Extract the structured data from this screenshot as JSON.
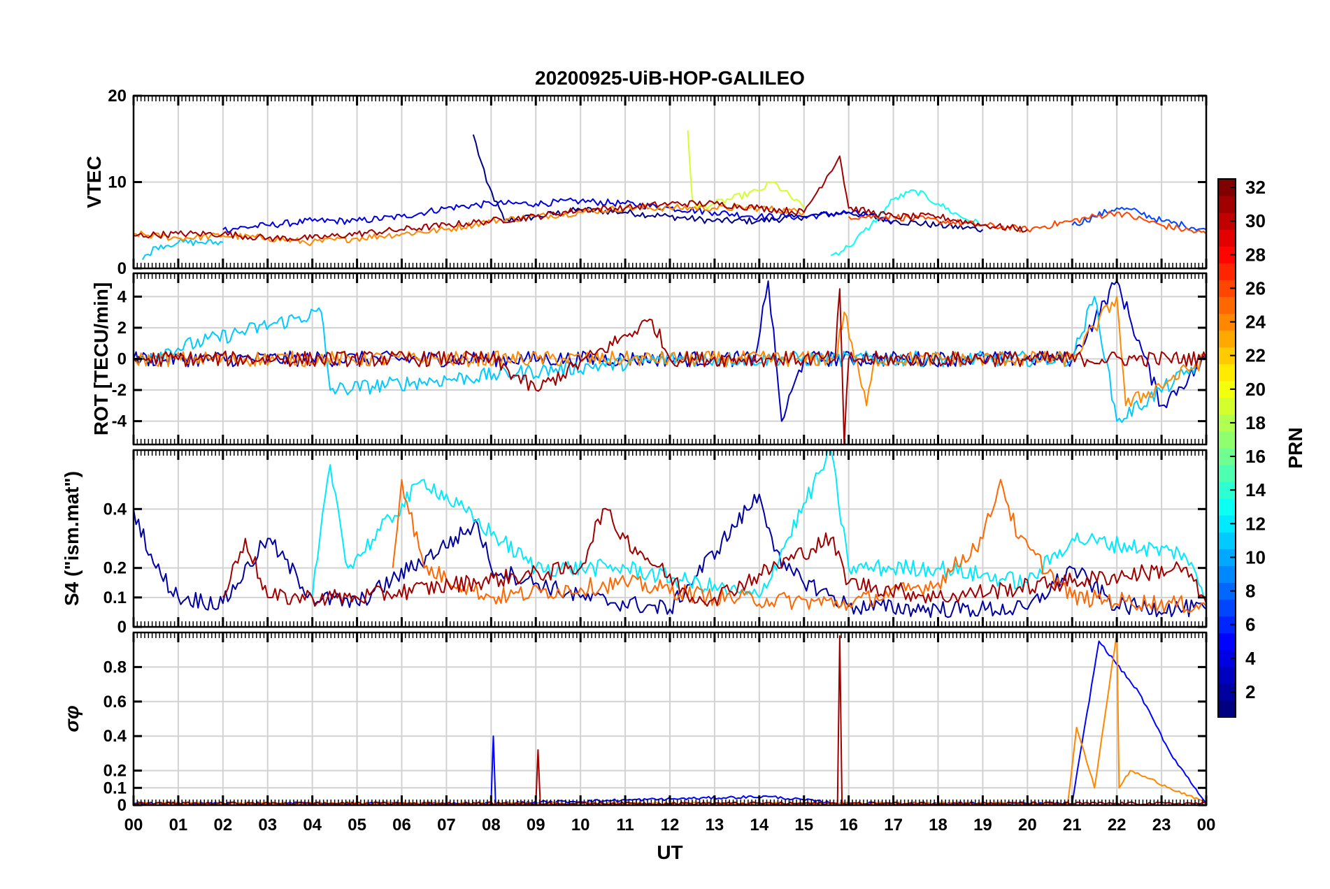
{
  "chart_data": {
    "type": "line",
    "title": "20200925-UiB-HOP-GALILEO",
    "xlabel": "UT",
    "x_ticks": [
      "00",
      "01",
      "02",
      "03",
      "04",
      "05",
      "06",
      "07",
      "08",
      "09",
      "10",
      "11",
      "12",
      "13",
      "14",
      "15",
      "16",
      "17",
      "18",
      "19",
      "20",
      "21",
      "22",
      "23",
      "00"
    ],
    "x_range_hours": [
      0,
      24
    ],
    "colormap": "jet",
    "colorbar": {
      "label": "PRN",
      "range": [
        1,
        32
      ],
      "ticks": [
        2,
        4,
        6,
        8,
        10,
        12,
        14,
        16,
        18,
        20,
        22,
        24,
        26,
        28,
        30,
        32
      ],
      "tick_labels": [
        "2",
        "4",
        "6",
        "8",
        "10",
        "12",
        "14",
        "16",
        "18",
        "20",
        "22",
        "24",
        "26",
        "28",
        "30",
        "32"
      ]
    },
    "panels": [
      {
        "id": "vtec",
        "ylabel": "VTEC",
        "ylim": [
          0,
          20
        ],
        "yticks": [
          0,
          10,
          20
        ],
        "ytick_labels": [
          "0",
          "10",
          "20"
        ],
        "series": [
          {
            "prn": 1,
            "hours": [
              7.6,
              7.9,
              8.3,
              9,
              10,
              11,
              12,
              13,
              14,
              15,
              16,
              17,
              18,
              19
            ],
            "values": [
              15.5,
              10,
              5.5,
              6,
              6.8,
              6.5,
              6,
              5.5,
              5.5,
              6,
              6.5,
              5.5,
              5,
              4.5
            ]
          },
          {
            "prn": 4,
            "hours": [
              2,
              3,
              4,
              5,
              6,
              7,
              8,
              9,
              10,
              11,
              12,
              13,
              14,
              15,
              16,
              17
            ],
            "values": [
              4.5,
              5,
              5.5,
              5.5,
              6,
              7,
              7.5,
              7.5,
              7.8,
              7.5,
              7,
              6.5,
              6,
              6,
              6.5,
              5.5
            ]
          },
          {
            "prn": 7,
            "hours": [
              21,
              21.5,
              22,
              22.5,
              23,
              23.5,
              24
            ],
            "values": [
              5,
              6,
              7,
              6.5,
              5.5,
              5,
              4.5
            ]
          },
          {
            "prn": 11,
            "hours": [
              0.2,
              0.5,
              1,
              1.5,
              2
            ],
            "values": [
              1,
              2.5,
              3,
              3,
              3
            ]
          },
          {
            "prn": 13,
            "hours": [
              15.6,
              16,
              16.5,
              17,
              17.5,
              18,
              18.5,
              19
            ],
            "values": [
              1.5,
              2.5,
              5,
              8,
              9,
              7.5,
              6,
              5
            ]
          },
          {
            "prn": 19,
            "hours": [
              12.4,
              12.5,
              12.6,
              13,
              14,
              14.3,
              15
            ],
            "values": [
              16,
              8,
              7,
              7.5,
              9,
              10,
              7
            ]
          },
          {
            "prn": 24,
            "hours": [
              0,
              1,
              2,
              3,
              4,
              5,
              6,
              7,
              8,
              9,
              10,
              11,
              12,
              13,
              14,
              15
            ],
            "values": [
              4,
              3.5,
              3.8,
              3.5,
              3,
              3.5,
              4,
              4.5,
              5.5,
              6,
              6.5,
              7,
              7,
              7,
              7,
              6.5
            ]
          },
          {
            "prn": 26,
            "hours": [
              16,
              17,
              18,
              19,
              20,
              21,
              22,
              23,
              24
            ],
            "values": [
              6,
              6,
              5.5,
              5,
              4.5,
              5.5,
              6.5,
              5,
              4
            ]
          },
          {
            "prn": 31,
            "hours": [
              0,
              1,
              2,
              3,
              4,
              5,
              6,
              7,
              8,
              9,
              10,
              11,
              12,
              13,
              14,
              15,
              15.8,
              16,
              17,
              18,
              19,
              20
            ],
            "values": [
              3.8,
              4,
              4,
              3.5,
              3.5,
              4,
              4.5,
              5,
              5.5,
              6,
              6.8,
              7,
              7.5,
              7.5,
              7,
              6.5,
              13,
              7,
              6,
              6,
              5,
              4.5
            ]
          }
        ]
      },
      {
        "id": "rot",
        "ylabel": "ROT [TECU/min]",
        "ylim": [
          -5.5,
          5.5
        ],
        "yticks": [
          -4,
          -2,
          0,
          2,
          4
        ],
        "ytick_labels": [
          "-4",
          "-2",
          "0",
          "2",
          "4"
        ],
        "series": [
          {
            "prn": 3,
            "hours": [
              0,
              4,
              8,
              12,
              13.9,
              14.2,
              14.5,
              15,
              20,
              21,
              22,
              23,
              24
            ],
            "values": [
              0,
              0,
              0,
              0,
              0,
              5,
              -4,
              0,
              0,
              0,
              5,
              -3,
              0
            ]
          },
          {
            "prn": 11,
            "hours": [
              0,
              4.2,
              4.4,
              12,
              21,
              21.5,
              22,
              24
            ],
            "values": [
              0,
              3,
              -2,
              0,
              0,
              4,
              -4,
              0
            ]
          },
          {
            "prn": 24,
            "hours": [
              0,
              15.7,
              15.9,
              16.4,
              16.6,
              21,
              22,
              22.2,
              24
            ],
            "values": [
              0,
              0,
              3,
              -3,
              0,
              0,
              4,
              -3,
              0
            ]
          },
          {
            "prn": 31,
            "hours": [
              0,
              8,
              9,
              11.6,
              12,
              15.7,
              15.8,
              15.9,
              16,
              24
            ],
            "values": [
              0,
              0,
              -2,
              2.5,
              0,
              0,
              4.5,
              -5.5,
              0,
              0
            ]
          }
        ]
      },
      {
        "id": "s4",
        "ylabel": "S4 (\"ism.mat\")",
        "ylim": [
          0,
          0.6
        ],
        "yticks": [
          0,
          0.1,
          0.2,
          0.4
        ],
        "ytick_labels": [
          "0",
          "0.1",
          "0.2",
          "0.4"
        ],
        "series": [
          {
            "prn": 2,
            "hours": [
              0,
              0.5,
              1,
              2,
              3,
              4,
              5,
              7.7,
              8,
              10,
              12,
              14,
              14.5,
              16,
              18,
              20,
              21,
              22,
              24
            ],
            "values": [
              0.4,
              0.2,
              0.1,
              0.08,
              0.3,
              0.1,
              0.08,
              0.35,
              0.2,
              0.1,
              0.06,
              0.45,
              0.2,
              0.07,
              0.06,
              0.06,
              0.2,
              0.07,
              0.06
            ]
          },
          {
            "prn": 12,
            "hours": [
              4,
              4.4,
              4.8,
              6.5,
              9,
              11,
              14,
              15.6,
              16,
              18,
              20,
              21,
              23.5,
              24
            ],
            "values": [
              0.1,
              0.55,
              0.2,
              0.5,
              0.2,
              0.2,
              0.1,
              0.6,
              0.2,
              0.2,
              0.15,
              0.3,
              0.25,
              0.1
            ]
          },
          {
            "prn": 25,
            "hours": [
              5.8,
              6,
              6.5,
              8,
              11,
              13,
              16,
              18,
              19,
              19.4,
              19.8,
              21,
              24
            ],
            "values": [
              0.2,
              0.5,
              0.2,
              0.1,
              0.15,
              0.1,
              0.08,
              0.15,
              0.3,
              0.5,
              0.3,
              0.1,
              0.07
            ]
          },
          {
            "prn": 31,
            "hours": [
              2,
              2.5,
              3,
              4,
              5,
              10,
              10.5,
              11,
              12.5,
              13,
              15.6,
              16,
              18,
              23.5,
              24
            ],
            "values": [
              0.1,
              0.3,
              0.1,
              0.1,
              0.1,
              0.2,
              0.4,
              0.3,
              0.1,
              0.1,
              0.3,
              0.15,
              0.1,
              0.2,
              0.08
            ]
          }
        ]
      },
      {
        "id": "sigma_phi",
        "ylabel": "σφ",
        "ylim": [
          0,
          1
        ],
        "yticks": [
          0,
          0.1,
          0.2,
          0.4,
          0.6,
          0.8
        ],
        "ytick_labels": [
          "0",
          "0.1",
          "0.2",
          "0.4",
          "0.6",
          "0.8"
        ],
        "series": [
          {
            "prn": 5,
            "hours": [
              0,
              8,
              8.05,
              8.1,
              14.2,
              15.8,
              21,
              21.6,
              22.5,
              23.2,
              24
            ],
            "values": [
              0.01,
              0.01,
              0.4,
              0.01,
              0.05,
              0.01,
              0.01,
              0.95,
              0.65,
              0.3,
              0.01
            ]
          },
          {
            "prn": 24,
            "hours": [
              0,
              20.9,
              21.1,
              21.5,
              22,
              22.05,
              22.3,
              24
            ],
            "values": [
              0.01,
              0.01,
              0.45,
              0.1,
              1.0,
              0.1,
              0.2,
              0.01
            ]
          },
          {
            "prn": 31,
            "hours": [
              0,
              9,
              9.05,
              9.1,
              15.75,
              15.8,
              15.85,
              24
            ],
            "values": [
              0.01,
              0.01,
              0.32,
              0.01,
              0.01,
              0.98,
              0.01,
              0.01
            ]
          }
        ]
      }
    ]
  }
}
